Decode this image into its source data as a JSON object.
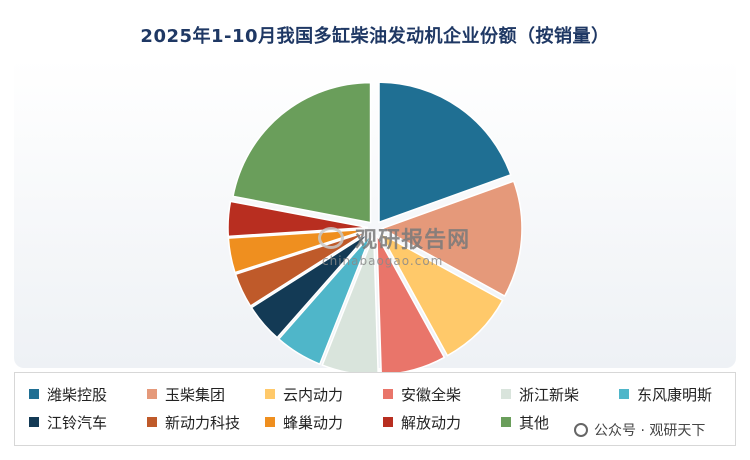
{
  "chart_data": {
    "type": "pie",
    "title": "2025年1-10月我国多缸柴油发动机企业份额（按销量）",
    "legend_position": "bottom",
    "slices": [
      {
        "label": "潍柴控股",
        "value": 19.5,
        "color": "#1f6f93"
      },
      {
        "label": "玉柴集团",
        "value": 13.5,
        "color": "#e5997a"
      },
      {
        "label": "云内动力",
        "value": 9.0,
        "color": "#ffc96a"
      },
      {
        "label": "安徽全柴",
        "value": 7.5,
        "color": "#e9756a"
      },
      {
        "label": "浙江新柴",
        "value": 6.5,
        "color": "#d9e4dc"
      },
      {
        "label": "东风康明斯",
        "value": 5.5,
        "color": "#4fb6c9"
      },
      {
        "label": "江铃汽车",
        "value": 4.5,
        "color": "#133a55"
      },
      {
        "label": "新动力科技",
        "value": 4.0,
        "color": "#bf5a2a"
      },
      {
        "label": "蜂巢动力",
        "value": 4.0,
        "color": "#ef8f1f"
      },
      {
        "label": "解放动力",
        "value": 4.0,
        "color": "#b82e20"
      },
      {
        "label": "其他",
        "value": 22.0,
        "color": "#6a9e5b"
      }
    ]
  },
  "watermark": {
    "main": "观研报告网",
    "sub": "chinabaogao.com"
  },
  "credit": {
    "text": "公众号 · 观研天下"
  }
}
